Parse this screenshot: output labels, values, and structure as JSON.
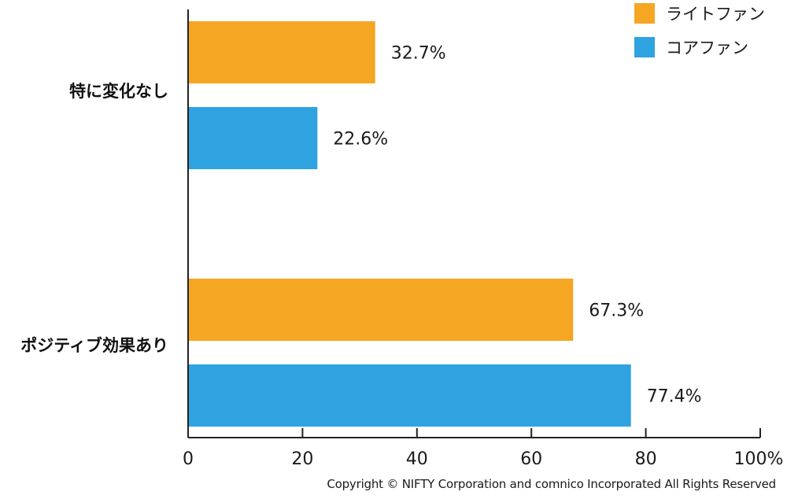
{
  "chart_data": {
    "type": "bar",
    "orientation": "horizontal",
    "categories": [
      "特に変化なし",
      "ポジティブ効果あり"
    ],
    "series": [
      {
        "name": "ライトファン",
        "color": "#F5A623",
        "values": [
          32.7,
          67.3
        ],
        "labels": [
          "32.7%",
          "67.3%"
        ]
      },
      {
        "name": "コアファン",
        "color": "#2EA3E0",
        "values": [
          22.6,
          77.4
        ],
        "labels": [
          "22.6%",
          "77.4%"
        ]
      }
    ],
    "xlim": [
      0,
      100
    ],
    "ticks": [
      0,
      20,
      40,
      60,
      80,
      100
    ],
    "tick_labels": [
      "0",
      "20",
      "40",
      "60",
      "80",
      "100%"
    ],
    "legend_position": "top-right",
    "grid": false
  },
  "footer": {
    "copyright": "Copyright © NIFTY Corporation and comnico Incorporated All Rights Reserved"
  }
}
